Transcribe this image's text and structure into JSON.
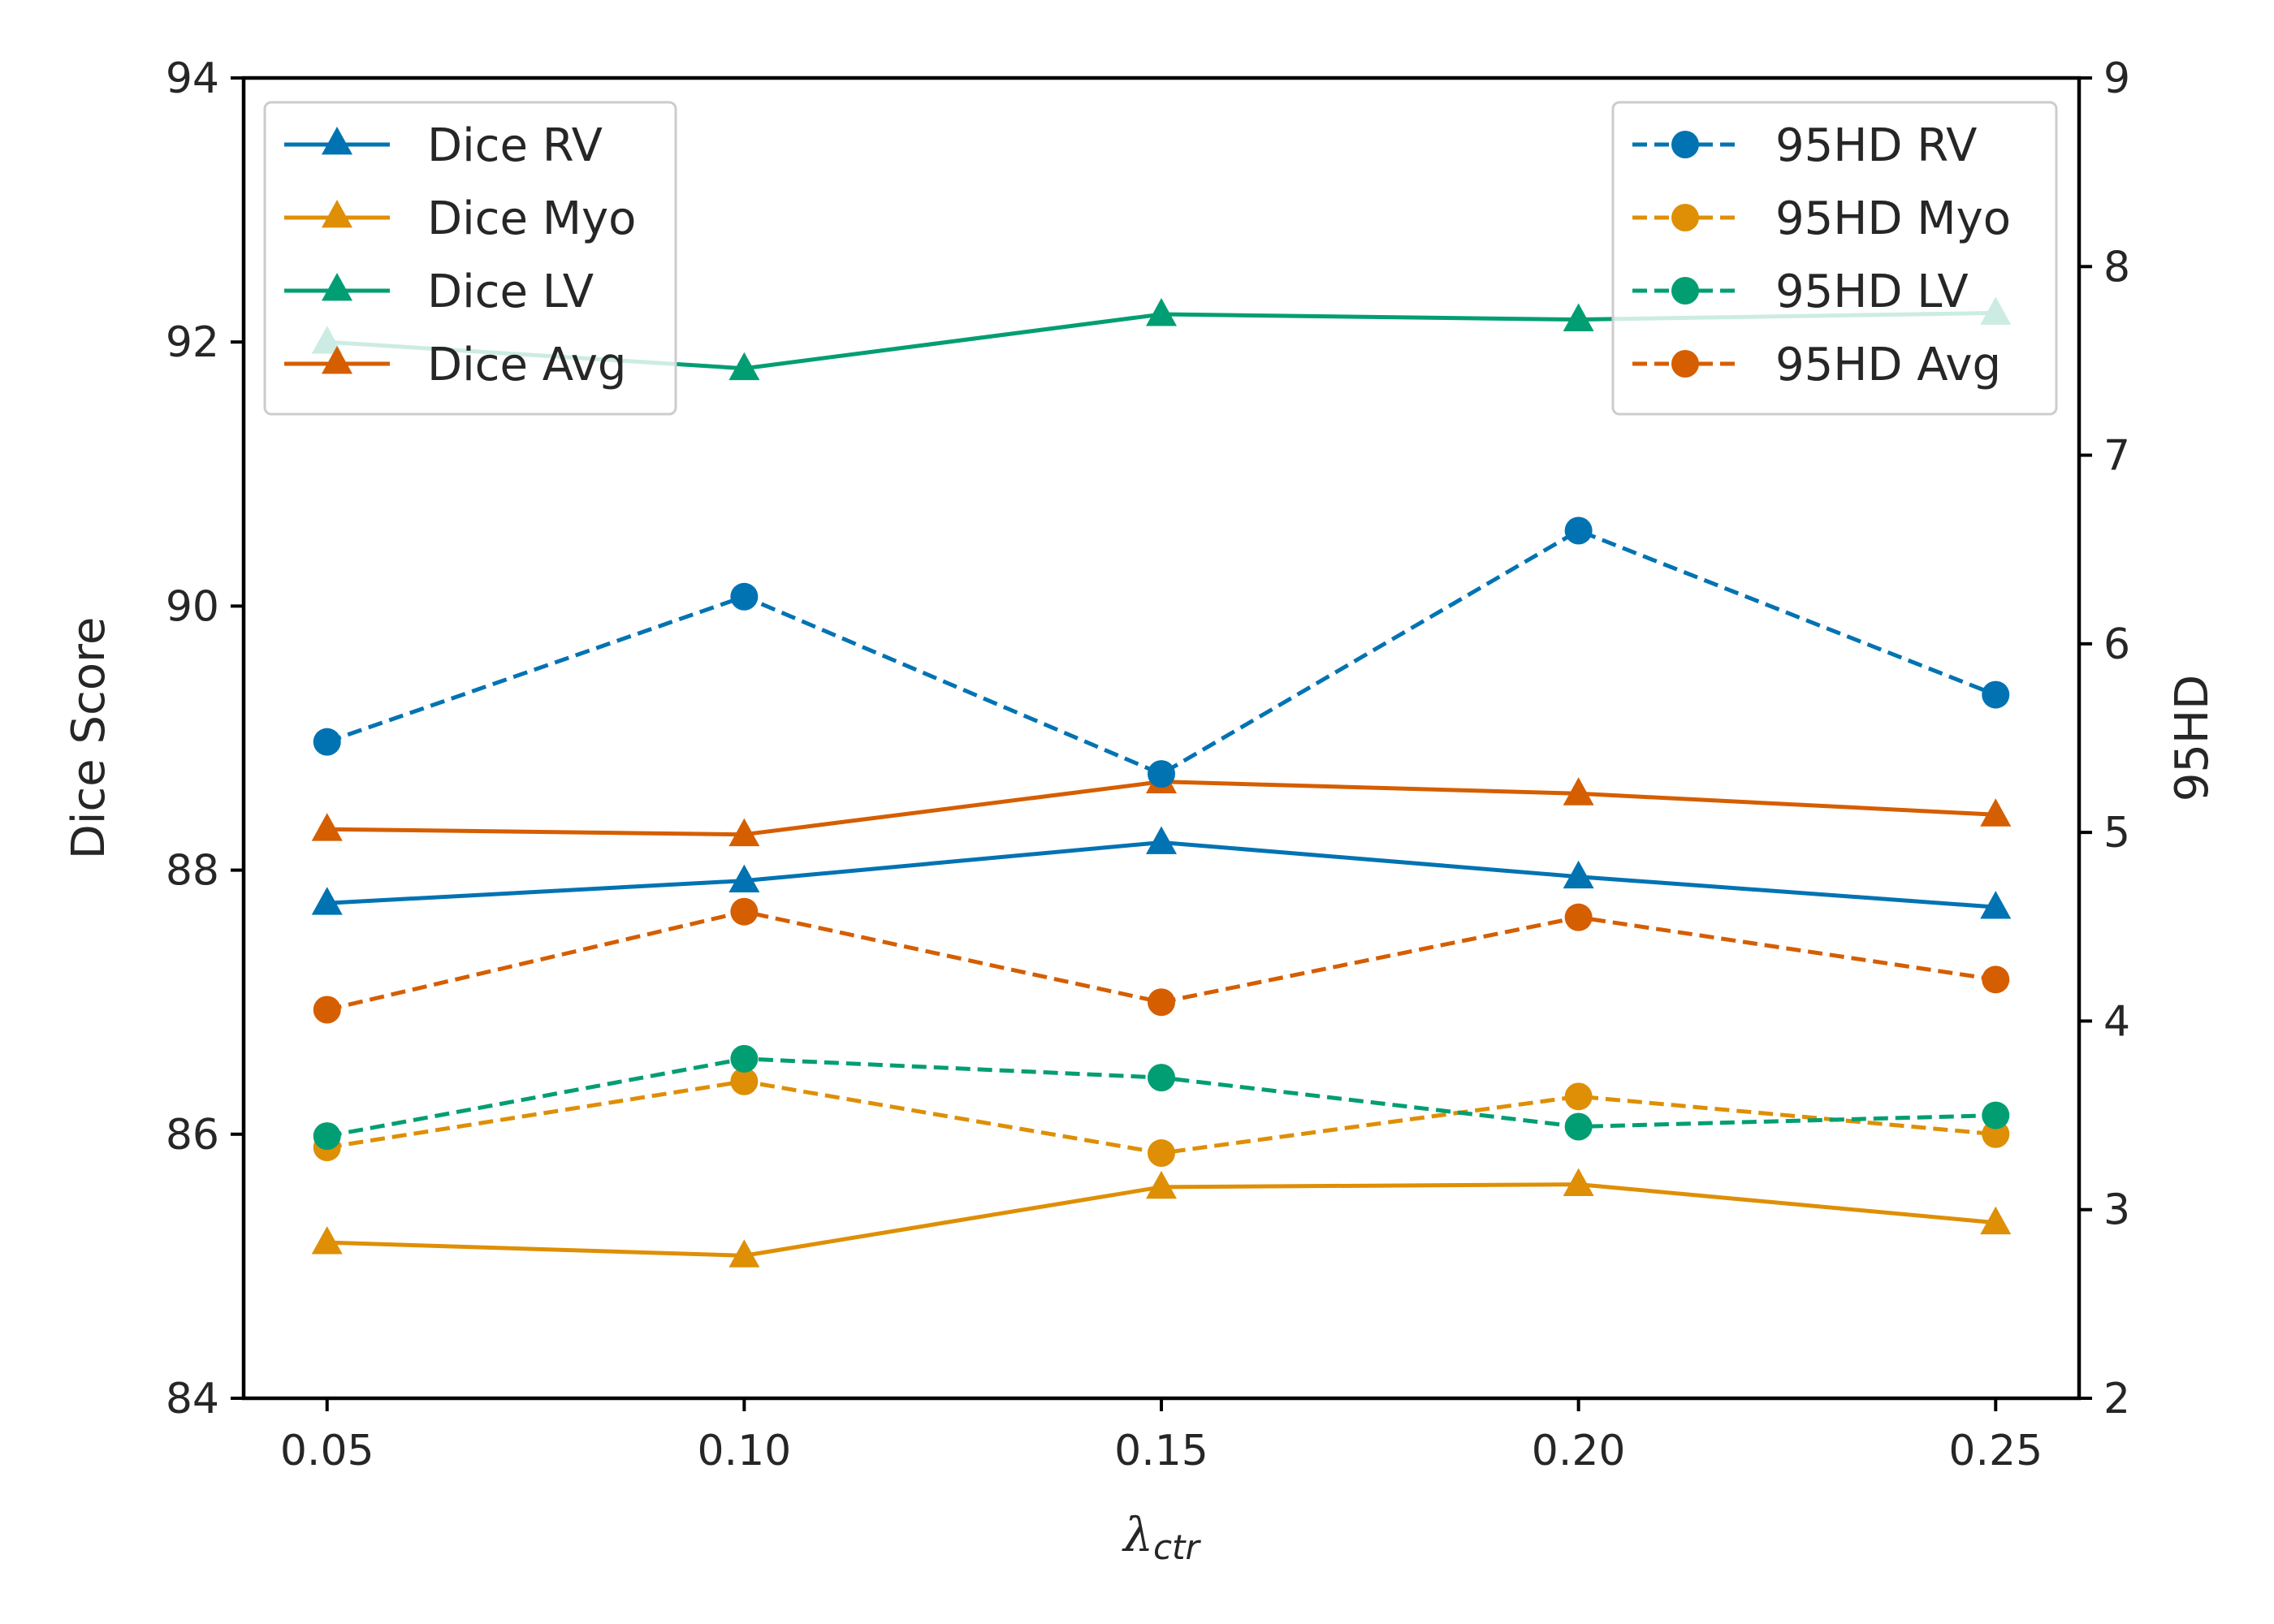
{
  "chart_data": {
    "type": "line",
    "x": [
      0.05,
      0.1,
      0.15,
      0.2,
      0.25
    ],
    "x_tick_labels": [
      "0.05",
      "0.10",
      "0.15",
      "0.20",
      "0.25"
    ],
    "xlabel": "λ",
    "xlabel_subscript": "ctr",
    "xlim": [
      0.04,
      0.26
    ],
    "ylabel_left": "Dice Score",
    "ylim_left": [
      84,
      94
    ],
    "yticks_left": [
      84,
      86,
      88,
      90,
      92,
      94
    ],
    "ylabel_right": "95HD",
    "ylim_right": [
      2,
      9
    ],
    "yticks_right": [
      2,
      3,
      4,
      5,
      6,
      7,
      8,
      9
    ],
    "grid": false,
    "legend_left_placement": "top-left",
    "legend_right_placement": "top-right",
    "left_series": [
      {
        "name": "Dice RV",
        "values": [
          87.75,
          87.92,
          88.21,
          87.95,
          87.72
        ],
        "color": "#0173b2",
        "marker": "triangle",
        "line": "solid"
      },
      {
        "name": "Dice Myo",
        "values": [
          85.18,
          85.08,
          85.6,
          85.62,
          85.33
        ],
        "color": "#de8f05",
        "marker": "triangle",
        "line": "solid"
      },
      {
        "name": "Dice LV",
        "values": [
          92.0,
          91.8,
          92.21,
          92.17,
          92.22
        ],
        "color": "#029e73",
        "marker": "triangle",
        "line": "solid"
      },
      {
        "name": "Dice Avg",
        "values": [
          88.31,
          88.27,
          88.67,
          88.58,
          88.42
        ],
        "color": "#d55e00",
        "marker": "triangle",
        "line": "solid"
      }
    ],
    "right_series": [
      {
        "name": "95HD RV",
        "values": [
          5.48,
          6.25,
          5.31,
          6.6,
          5.73
        ],
        "color": "#0173b2",
        "marker": "circle",
        "line": "dashed"
      },
      {
        "name": "95HD Myo",
        "values": [
          3.33,
          3.68,
          3.3,
          3.6,
          3.4
        ],
        "color": "#de8f05",
        "marker": "circle",
        "line": "dashed"
      },
      {
        "name": "95HD LV",
        "values": [
          3.39,
          3.8,
          3.7,
          3.44,
          3.5
        ],
        "color": "#029e73",
        "marker": "circle",
        "line": "dashed"
      },
      {
        "name": "95HD Avg",
        "values": [
          4.06,
          4.58,
          4.1,
          4.55,
          4.22
        ],
        "color": "#d55e00",
        "marker": "circle",
        "line": "dashed"
      }
    ]
  }
}
